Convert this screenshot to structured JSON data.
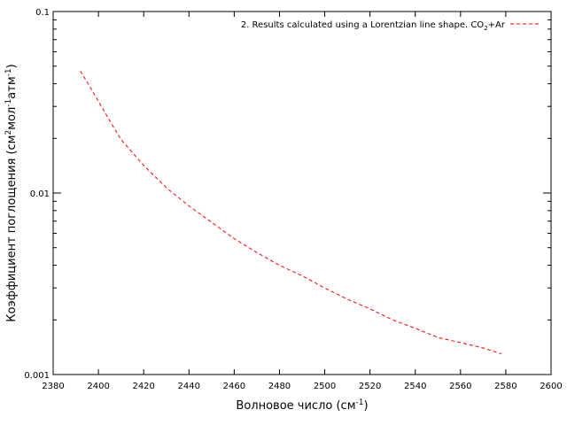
{
  "chart_data": {
    "type": "line",
    "xlabel": "Волновое число (см",
    "xlabel_sup": "-1",
    "xlabel_end": ")",
    "ylabel_parts": [
      "Коэффициент поглощения (см",
      "2",
      "мол",
      "-1",
      "атм",
      "-1",
      ")"
    ],
    "x_scale": "linear",
    "y_scale": "log",
    "xlim": [
      2380,
      2600
    ],
    "ylim": [
      0.001,
      0.1
    ],
    "x_ticks": [
      2380,
      2400,
      2420,
      2440,
      2460,
      2480,
      2500,
      2520,
      2540,
      2560,
      2580,
      2600
    ],
    "x_tick_labels": [
      "2380",
      "2400",
      "2420",
      "2440",
      "2460",
      "2480",
      "2500",
      "2520",
      "2540",
      "2560",
      "2580",
      "2600"
    ],
    "y_ticks": [
      0.001,
      0.01,
      0.1
    ],
    "y_tick_labels": [
      "0.001",
      "0.01",
      "0.1"
    ],
    "grid": false,
    "legend_position": "top-right",
    "series": [
      {
        "name_parts": [
          "2. Results calculated using a Lorentzian line shape. CO",
          "2",
          "+Ar"
        ],
        "color": "#ff0000",
        "line_style": "dashed",
        "x": [
          2392,
          2396,
          2400,
          2405,
          2410,
          2420,
          2430,
          2440,
          2450,
          2460,
          2470,
          2480,
          2490,
          2500,
          2510,
          2520,
          2530,
          2540,
          2550,
          2560,
          2570,
          2578
        ],
        "y": [
          0.047,
          0.039,
          0.032,
          0.025,
          0.0197,
          0.0142,
          0.0107,
          0.0085,
          0.0069,
          0.0056,
          0.0047,
          0.004,
          0.0035,
          0.003,
          0.0026,
          0.0023,
          0.002,
          0.0018,
          0.0016,
          0.0015,
          0.0014,
          0.0013
        ]
      }
    ]
  }
}
